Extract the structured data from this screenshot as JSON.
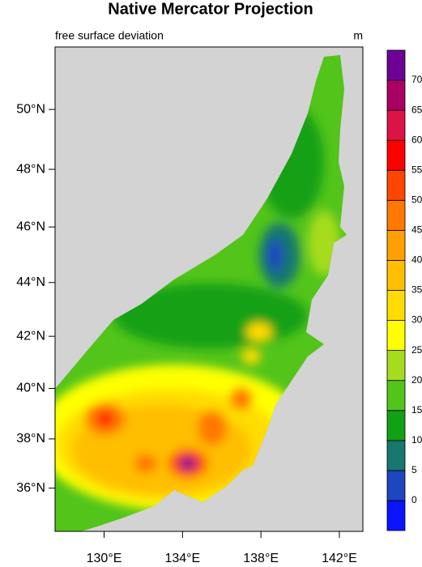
{
  "chart_data": {
    "type": "contour",
    "projection": "mercator",
    "title": "Native Mercator Projection",
    "subtitle_left": "free surface deviation",
    "subtitle_right": "m",
    "xlim": [
      127.5,
      143.2
    ],
    "ylim": [
      34.2,
      52.0
    ],
    "xticks": [
      {
        "value": 130,
        "label": "130°E"
      },
      {
        "value": 134,
        "label": "134°E"
      },
      {
        "value": 138,
        "label": "138°E"
      },
      {
        "value": 142,
        "label": "142°E"
      }
    ],
    "yticks": [
      {
        "value": 36,
        "label": "36°N"
      },
      {
        "value": 38,
        "label": "38°N"
      },
      {
        "value": 40,
        "label": "40°N"
      },
      {
        "value": 42,
        "label": "42°N"
      },
      {
        "value": 44,
        "label": "44°N"
      },
      {
        "value": 46,
        "label": "46°N"
      },
      {
        "value": 48,
        "label": "48°N"
      },
      {
        "value": 50,
        "label": "50°N"
      }
    ],
    "levels": [
      0,
      5,
      10,
      15,
      20,
      25,
      30,
      35,
      40,
      45,
      50,
      55,
      60,
      65,
      70
    ],
    "colors": [
      "#0a14ff",
      "#1e46c0",
      "#16786e",
      "#12a014",
      "#52c41a",
      "#a6dc1e",
      "#ffff00",
      "#ffdc00",
      "#ffbe00",
      "#ffa000",
      "#ff7800",
      "#ff4600",
      "#ff0000",
      "#dc1446",
      "#aa0064",
      "#6e0096"
    ]
  }
}
